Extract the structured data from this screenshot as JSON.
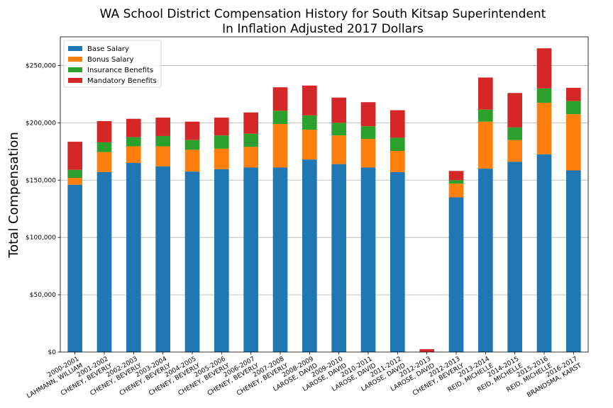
{
  "chart_data": {
    "type": "bar",
    "stacked": true,
    "title_line1": "WA School District Compensation History for South Kitsap Superintendent",
    "title_line2": "In Inflation Adjusted 2017 Dollars",
    "xlabel": "",
    "ylabel": "Total Compensation",
    "ylim": [
      0,
      275000
    ],
    "yticks": [
      0,
      50000,
      100000,
      150000,
      200000,
      250000
    ],
    "ytick_labels": [
      "$0",
      "$50,000",
      "$100,000",
      "$150,000",
      "$200,000",
      "$250,000"
    ],
    "grid": "horizontal",
    "legend_position": "top-left",
    "categories": [
      [
        "2000-2001",
        "LAHMANN, WILLIAM"
      ],
      [
        "2001-2002",
        "CHENEY, BEVERLY"
      ],
      [
        "2002-2003",
        "CHENEY, BEVERLY"
      ],
      [
        "2003-2004",
        "CHENEY, BEVERLY"
      ],
      [
        "2004-2005",
        "CHENEY, BEVERLY"
      ],
      [
        "2005-2006",
        "CHENEY, BEVERLY"
      ],
      [
        "2006-2007",
        "CHENEY, BEVERLY"
      ],
      [
        "2007-2008",
        "CHENEY, BEVERLY"
      ],
      [
        "2008-2009",
        "LAROSE, DAVID"
      ],
      [
        "2009-2010",
        "LAROSE, DAVID"
      ],
      [
        "2010-2011",
        "LAROSE, DAVID"
      ],
      [
        "2011-2012",
        "LAROSE, DAVID"
      ],
      [
        "2012-2013",
        "LAROSE, DAVID"
      ],
      [
        "2012-2013",
        "CHENEY, BEVERLY"
      ],
      [
        "2013-2014",
        "REID, MICHELLE"
      ],
      [
        "2014-2015",
        "REID, MICHELLE"
      ],
      [
        "2015-2016",
        "REID, MICHELLE"
      ],
      [
        "2016-2017",
        "BRANDSMA, KARST"
      ]
    ],
    "series": [
      {
        "name": "Base Salary",
        "color": "#1f77b4",
        "values": [
          146000,
          157000,
          165000,
          162000,
          157500,
          159500,
          161000,
          161000,
          168000,
          164000,
          161000,
          157000,
          0,
          135000,
          160000,
          166000,
          172500,
          158500
        ]
      },
      {
        "name": "Bonus Salary",
        "color": "#ff7f0e",
        "values": [
          6000,
          17500,
          14500,
          17500,
          19000,
          18000,
          18000,
          38000,
          26000,
          25000,
          25000,
          18500,
          0,
          12000,
          41000,
          19000,
          45000,
          49000
        ]
      },
      {
        "name": "Insurance Benefits",
        "color": "#2ca02c",
        "values": [
          7000,
          8500,
          8000,
          9000,
          8500,
          11500,
          11500,
          11500,
          12500,
          11000,
          11000,
          11500,
          0,
          3000,
          10500,
          11000,
          12500,
          11500
        ]
      },
      {
        "name": "Mandatory Benefits",
        "color": "#d62728",
        "values": [
          24500,
          18500,
          16000,
          16000,
          16000,
          15500,
          18500,
          20500,
          26000,
          22000,
          21000,
          24000,
          2500,
          8000,
          28000,
          30000,
          35000,
          11500
        ]
      }
    ]
  }
}
